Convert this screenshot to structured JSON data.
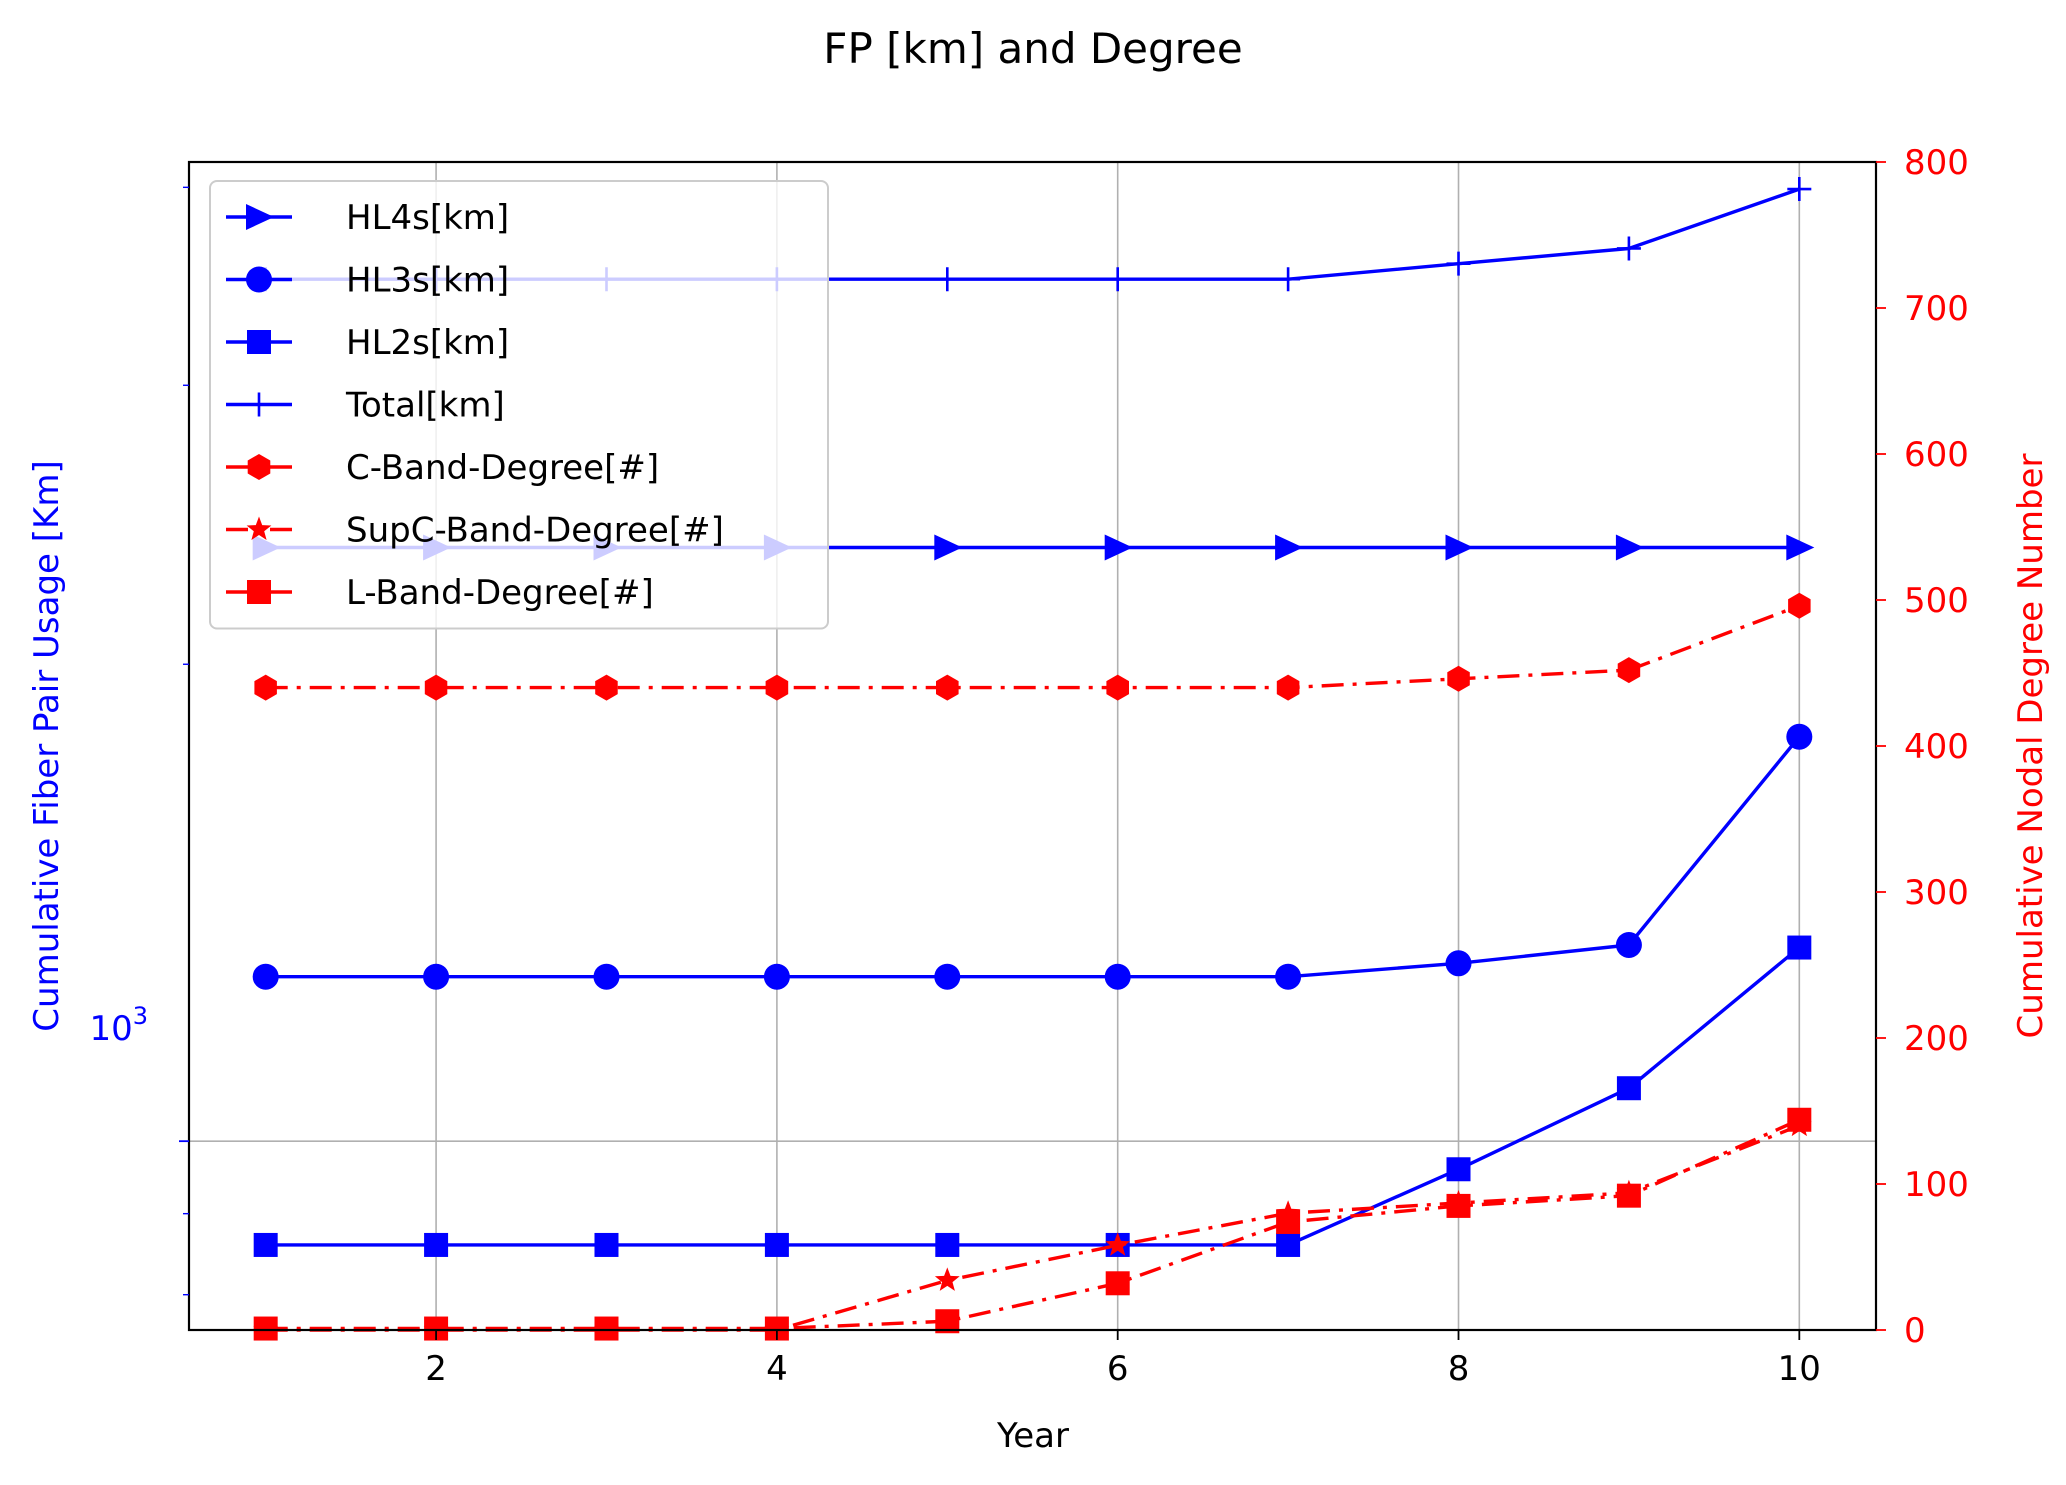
{
  "chart_data": {
    "type": "line",
    "title": "FP [km] and Degree",
    "xlabel": "Year",
    "ylabel": "Cumulative Fiber Pair Usage [Km]",
    "y2label": "Cumulative Nodal Degree Number",
    "x": [
      1,
      2,
      3,
      4,
      5,
      6,
      7,
      8,
      9,
      10
    ],
    "xlim": [
      0.55,
      10.45
    ],
    "xticks": [
      2,
      4,
      6,
      8,
      10
    ],
    "xtick_labels": [
      "2",
      "4",
      "6",
      "8",
      "10"
    ],
    "y_scale": "log",
    "ylim": [
      760,
      4150
    ],
    "ytick_label_base": "10",
    "ytick_label_exp": "3",
    "y2lim": [
      0,
      800
    ],
    "y2ticks": [
      0,
      100,
      200,
      300,
      400,
      500,
      600,
      700,
      800
    ],
    "y2tick_labels": [
      "0",
      "100",
      "200",
      "300",
      "400",
      "500",
      "600",
      "700",
      "800"
    ],
    "grid": true,
    "legend_position": "upper-left",
    "left_axis_color": "#0000ff",
    "right_axis_color": "#ff0000",
    "series": [
      {
        "name": "HL4s[km]",
        "axis": "left",
        "marker": "triangle-right",
        "linestyle": "solid",
        "color": "#0000ff",
        "values": [
          2370,
          2370,
          2370,
          2370,
          2370,
          2370,
          2370,
          2370,
          2370,
          2370
        ]
      },
      {
        "name": "HL3s[km]",
        "axis": "left",
        "marker": "circle",
        "linestyle": "solid",
        "color": "#0000ff",
        "values": [
          1270,
          1270,
          1270,
          1270,
          1270,
          1270,
          1270,
          1295,
          1330,
          1800
        ]
      },
      {
        "name": "HL2s[km]",
        "axis": "left",
        "marker": "square",
        "linestyle": "solid",
        "color": "#0000ff",
        "values": [
          860,
          860,
          860,
          860,
          860,
          860,
          860,
          960,
          1080,
          1325
        ]
      },
      {
        "name": "Total[km]",
        "axis": "left",
        "marker": "plus",
        "linestyle": "solid",
        "color": "#0000ff",
        "values": [
          3500,
          3500,
          3500,
          3500,
          3500,
          3500,
          3500,
          3580,
          3660,
          3990
        ]
      },
      {
        "name": "C-Band-Degree[#]",
        "axis": "right",
        "marker": "hexagon",
        "linestyle": "dashdot",
        "color": "#ff0000",
        "values": [
          440,
          440,
          440,
          440,
          440,
          440,
          440,
          446,
          452,
          496
        ]
      },
      {
        "name": "SupC-Band-Degree[#]",
        "axis": "right",
        "marker": "star",
        "linestyle": "dashdot",
        "color": "#ff0000",
        "values": [
          0,
          0,
          0,
          0,
          34,
          58,
          80,
          87,
          94,
          140
        ]
      },
      {
        "name": "L-Band-Degree[#]",
        "axis": "right",
        "marker": "square",
        "linestyle": "dashdot",
        "color": "#ff0000",
        "values": [
          1,
          1,
          1,
          1,
          6,
          32,
          74,
          85,
          92,
          144
        ]
      }
    ]
  }
}
